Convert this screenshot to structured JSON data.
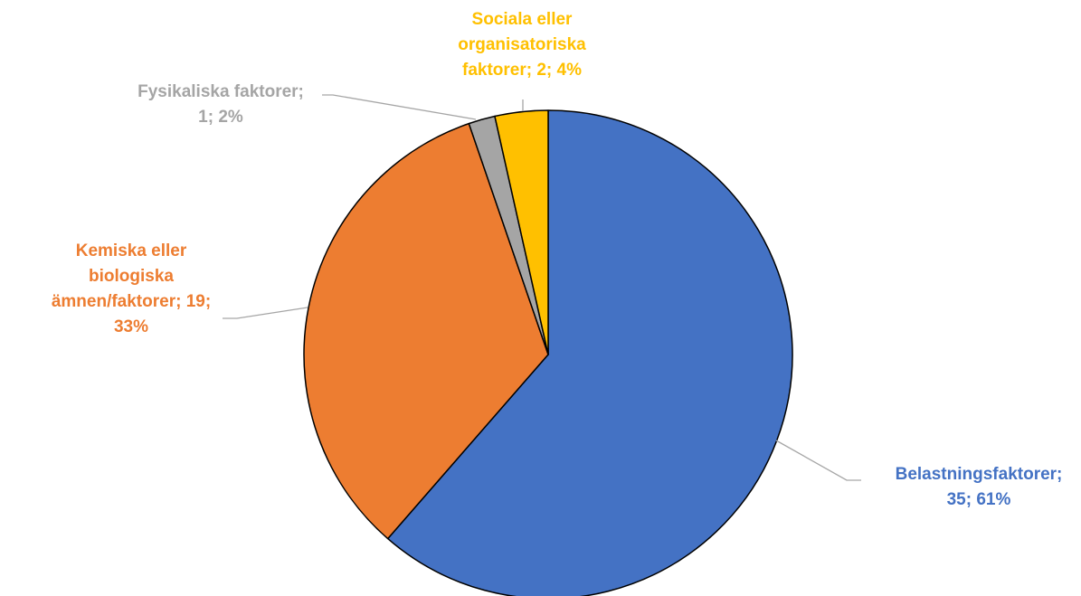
{
  "chart_data": {
    "type": "pie",
    "title": "",
    "slices": [
      {
        "category": "Belastningsfaktorer",
        "value": 35,
        "percent": "61%",
        "color": "#4472C4",
        "label_lines": [
          "Belastningsfaktorer;",
          "35; 61%"
        ]
      },
      {
        "category": "Kemiska eller biologiska ämnen/faktorer",
        "value": 19,
        "percent": "33%",
        "color": "#ED7D31",
        "label_lines": [
          "Kemiska eller",
          "biologiska",
          "ämnen/faktorer; 19;",
          "33%"
        ]
      },
      {
        "category": "Fysikaliska faktorer",
        "value": 1,
        "percent": "2%",
        "color": "#A5A5A5",
        "label_lines": [
          "Fysikaliska faktorer;",
          "1; 2%"
        ]
      },
      {
        "category": "Sociala eller organisatoriska faktorer",
        "value": 2,
        "percent": "4%",
        "color": "#FFC000",
        "label_lines": [
          "Sociala eller",
          "organisatoriska",
          "faktorer; 2; 4%"
        ]
      }
    ],
    "start_angle": "12 o'clock",
    "direction": "clockwise",
    "legend": "none"
  }
}
